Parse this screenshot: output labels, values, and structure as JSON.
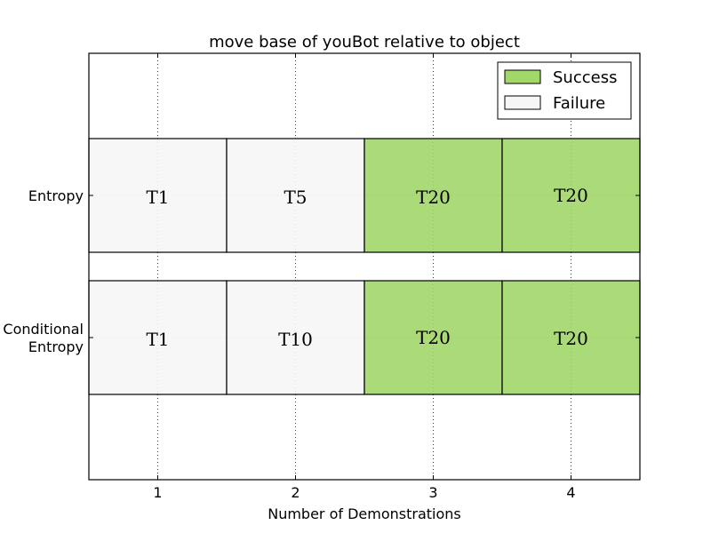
{
  "chart_data": {
    "type": "bar",
    "orientation": "horizontal",
    "stacked": true,
    "title": "move base of youBot relative to object",
    "xlabel": "Number of Demonstrations",
    "ylabel": "",
    "xlim": [
      0.5,
      4.5
    ],
    "x_ticks": [
      1,
      2,
      3,
      4
    ],
    "grid": true,
    "legend_position": "top-right",
    "categories": [
      "Entropy",
      "Conditional\nEntropy"
    ],
    "category_label_lines": [
      [
        "Entropy"
      ],
      [
        "Conditional",
        "Entropy"
      ]
    ],
    "series": [
      {
        "name": "Success",
        "color": "#a2d76a"
      },
      {
        "name": "Failure",
        "color": "#f6f6f6"
      }
    ],
    "rows": [
      {
        "category": "Entropy",
        "cells": [
          {
            "x": 1,
            "label": "T1",
            "status": "Failure"
          },
          {
            "x": 2,
            "label": "T5",
            "status": "Failure"
          },
          {
            "x": 3,
            "label": "T20",
            "status": "Success"
          },
          {
            "x": 4,
            "label": "T20",
            "status": "Success"
          }
        ]
      },
      {
        "category": "Conditional\nEntropy",
        "cells": [
          {
            "x": 1,
            "label": "T1",
            "status": "Failure"
          },
          {
            "x": 2,
            "label": "T10",
            "status": "Failure"
          },
          {
            "x": 3,
            "label": "T20",
            "status": "Success"
          },
          {
            "x": 4,
            "label": "T20",
            "status": "Success"
          }
        ]
      }
    ]
  }
}
